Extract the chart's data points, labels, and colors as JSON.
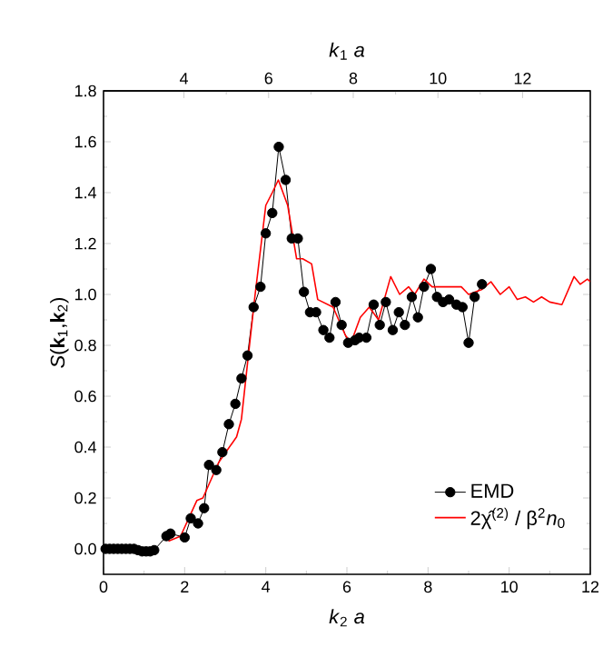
{
  "chart_data": {
    "type": "line",
    "xlabel": "*k*$_{2}$ *a*",
    "x2label": "*k*$_{1}$ *a*",
    "ylabel": "*S*(**k**$_{1}$,**k**$_{2}$)",
    "xlim": [
      0,
      12
    ],
    "xticks": [
      0,
      2,
      4,
      6,
      8,
      10,
      12
    ],
    "x2lim": [
      2.1,
      13.6
    ],
    "x2ticks": [
      4,
      6,
      8,
      10,
      12
    ],
    "ylim": [
      -0.1,
      1.8
    ],
    "yticks": [
      {
        "value": 0,
        "label": "0.0"
      },
      {
        "value": 0.2,
        "label": "0.2"
      },
      {
        "value": 0.4,
        "label": "0.4"
      },
      {
        "value": 0.6,
        "label": "0.6"
      },
      {
        "value": 0.8,
        "label": "0.8"
      },
      {
        "value": 1,
        "label": "1.0"
      },
      {
        "value": 1.2,
        "label": "1.2"
      },
      {
        "value": 1.4,
        "label": "1.4"
      },
      {
        "value": 1.6,
        "label": "1.6"
      },
      {
        "value": 1.8,
        "label": "1.8"
      }
    ],
    "legend": "bottom right",
    "grid": false,
    "series": [
      {
        "name": "EMD",
        "color": "#000000",
        "marker": "circle",
        "x": [
          0.05,
          0.15,
          0.25,
          0.35,
          0.45,
          0.55,
          0.65,
          0.75,
          0.85,
          0.95,
          1.05,
          1.15,
          1.25,
          1.55,
          1.65,
          2.0,
          2.15,
          2.33,
          2.48,
          2.6,
          2.78,
          2.93,
          3.09,
          3.25,
          3.4,
          3.55,
          3.7,
          3.87,
          4.0,
          4.16,
          4.32,
          4.49,
          4.64,
          4.79,
          4.94,
          5.09,
          5.24,
          5.42,
          5.57,
          5.72,
          5.87,
          6.03,
          6.2,
          6.3,
          6.48,
          6.66,
          6.81,
          6.96,
          7.13,
          7.28,
          7.43,
          7.6,
          7.75,
          7.9,
          8.07,
          8.22,
          8.37,
          8.52,
          8.7,
          8.85,
          9.0,
          9.15,
          9.33
        ],
        "values": [
          0.0,
          0.0,
          0.0,
          0.0,
          0.0,
          0.0,
          0.0,
          0.0,
          -0.005,
          -0.01,
          -0.01,
          -0.01,
          -0.005,
          0.05,
          0.06,
          0.045,
          0.12,
          0.1,
          0.16,
          0.33,
          0.31,
          0.38,
          0.49,
          0.57,
          0.67,
          0.76,
          0.95,
          1.03,
          1.24,
          1.32,
          1.58,
          1.45,
          1.22,
          1.22,
          1.01,
          0.93,
          0.93,
          0.86,
          0.83,
          0.97,
          0.88,
          0.81,
          0.82,
          0.83,
          0.83,
          0.96,
          0.88,
          0.97,
          0.86,
          0.93,
          0.88,
          0.99,
          0.91,
          1.03,
          1.1,
          0.99,
          0.97,
          0.98,
          0.96,
          0.95,
          0.81,
          0.99,
          1.04
        ]
      },
      {
        "name": "2χ̂$^{(2)}$ / β$^{2}$*n*$_{0}$",
        "color": "#ff0000",
        "marker": "none",
        "x": [
          1.6,
          1.9,
          2.3,
          2.45,
          2.84,
          3.28,
          3.4,
          3.55,
          3.73,
          4.0,
          4.16,
          4.31,
          4.54,
          4.76,
          4.91,
          5.13,
          5.28,
          5.66,
          5.96,
          6.1,
          6.33,
          6.55,
          6.78,
          7.08,
          7.3,
          7.52,
          7.67,
          7.9,
          8.1,
          8.37,
          8.82,
          9.0,
          9.33,
          9.55,
          9.78,
          10.0,
          10.2,
          10.4,
          10.6,
          10.8,
          11.0,
          11.3,
          11.6,
          11.75,
          11.93,
          12.0
        ],
        "values": [
          0.03,
          0.05,
          0.19,
          0.2,
          0.34,
          0.44,
          0.51,
          0.73,
          0.99,
          1.35,
          1.4,
          1.45,
          1.35,
          1.14,
          1.14,
          1.12,
          0.98,
          0.95,
          0.84,
          0.81,
          0.91,
          0.95,
          0.9,
          1.07,
          1.0,
          1.03,
          1.0,
          1.06,
          1.03,
          1.03,
          1.03,
          1.0,
          1.02,
          1.05,
          1.0,
          1.03,
          0.98,
          0.99,
          0.97,
          0.99,
          0.97,
          0.96,
          1.07,
          1.04,
          1.06,
          1.05
        ]
      }
    ]
  }
}
